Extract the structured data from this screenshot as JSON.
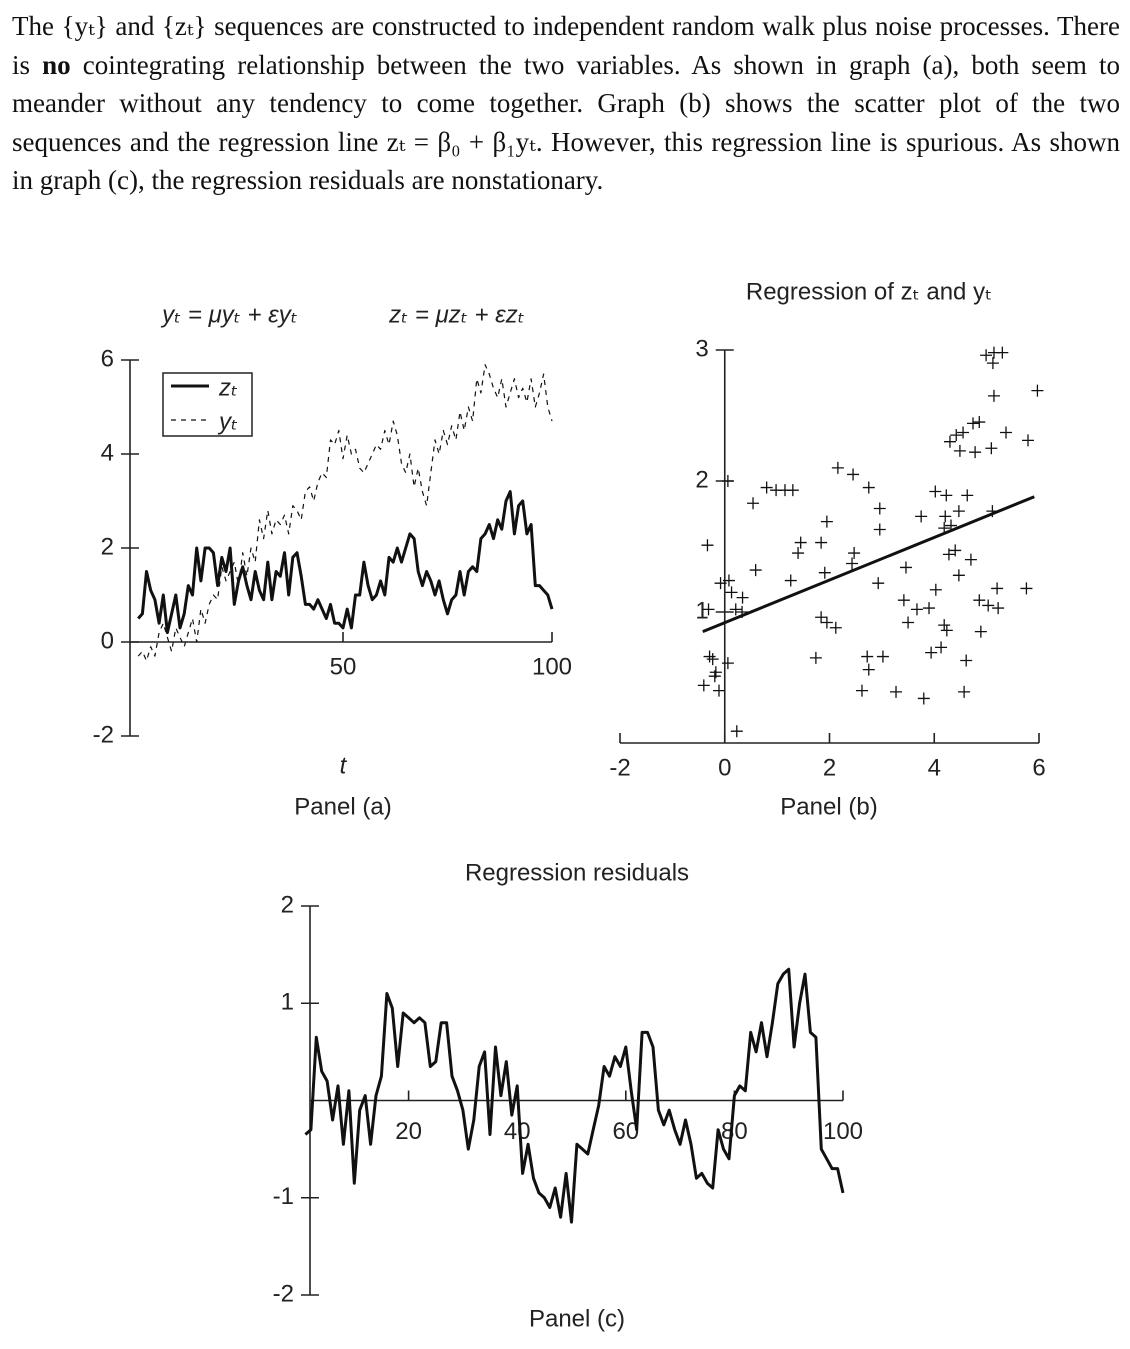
{
  "paragraph": [
    "The {yₜ} and {zₜ} sequences are constructed to independent random walk plus noise processes. There is ",
    "no",
    " cointegrating relationship between the two variables. As shown in graph (a), both seem to meander without any tendency to come together. Graph (b) shows the scatter plot of the two sequences and the regression line zₜ = β₀ + β₁yₜ. However, this regression line is spurious. As shown in graph (c), the regression residuals are nonstationary."
  ],
  "chart_data": [
    {
      "type": "line",
      "annotations": [
        "yₜ = μyₜ + εyₜ",
        "zₜ = μzₜ + εzₜ"
      ],
      "x_label": "t",
      "panel_label": "Panel (a)",
      "x": [
        1,
        2,
        3,
        4,
        5,
        6,
        7,
        8,
        9,
        10,
        11,
        12,
        13,
        14,
        15,
        16,
        17,
        18,
        19,
        20,
        21,
        22,
        23,
        24,
        25,
        26,
        27,
        28,
        29,
        30,
        31,
        32,
        33,
        34,
        35,
        36,
        37,
        38,
        39,
        40,
        41,
        42,
        43,
        44,
        45,
        46,
        47,
        48,
        49,
        50,
        51,
        52,
        53,
        54,
        55,
        56,
        57,
        58,
        59,
        60,
        61,
        62,
        63,
        64,
        65,
        66,
        67,
        68,
        69,
        70,
        71,
        72,
        73,
        74,
        75,
        76,
        77,
        78,
        79,
        80,
        81,
        82,
        83,
        84,
        85,
        86,
        87,
        88,
        89,
        90,
        91,
        92,
        93,
        94,
        95,
        96,
        97,
        98,
        99,
        100
      ],
      "series": [
        {
          "name": "zₜ",
          "color": "#111111",
          "style": "solid",
          "values": [
            0.5,
            0.6,
            1.5,
            1.1,
            0.9,
            0.4,
            1.0,
            0.2,
            0.6,
            1.0,
            0.3,
            0.6,
            1.2,
            1.0,
            2.0,
            1.3,
            2.0,
            2.0,
            1.9,
            1.2,
            1.8,
            1.5,
            2.0,
            0.8,
            1.3,
            1.6,
            1.2,
            0.9,
            1.5,
            1.1,
            0.9,
            1.7,
            0.9,
            1.5,
            1.4,
            1.9,
            1.0,
            1.8,
            1.9,
            1.4,
            0.8,
            0.8,
            0.7,
            0.9,
            0.7,
            0.5,
            0.8,
            0.4,
            0.4,
            0.3,
            0.7,
            0.3,
            1.0,
            1.0,
            1.7,
            1.2,
            0.9,
            1.0,
            1.3,
            1.0,
            1.8,
            1.7,
            2.0,
            1.7,
            2.0,
            2.3,
            2.2,
            1.5,
            1.2,
            1.5,
            1.3,
            1.0,
            1.3,
            0.9,
            0.6,
            0.9,
            1.0,
            1.5,
            1.0,
            1.5,
            1.6,
            1.5,
            2.2,
            2.3,
            2.5,
            2.2,
            2.6,
            2.4,
            3.0,
            3.2,
            2.3,
            2.9,
            3.0,
            2.3,
            2.5,
            1.2,
            1.2,
            1.1,
            1.0,
            0.7
          ]
        },
        {
          "name": "yₜ",
          "color": "#111111",
          "style": "dashed",
          "values": [
            -0.3,
            -0.2,
            -0.4,
            -0.1,
            -0.3,
            0.2,
            0.4,
            0.1,
            -0.2,
            0.3,
            0.1,
            -0.1,
            0.2,
            0.5,
            0.0,
            0.7,
            0.4,
            0.8,
            1.0,
            0.9,
            1.6,
            1.3,
            1.5,
            1.7,
            1.2,
            1.9,
            1.4,
            2.0,
            1.7,
            2.6,
            2.2,
            2.8,
            2.3,
            2.6,
            2.5,
            2.7,
            2.3,
            2.9,
            2.8,
            2.6,
            3.2,
            3.3,
            3.0,
            3.4,
            3.6,
            3.5,
            4.3,
            4.2,
            4.5,
            3.9,
            4.4,
            4.0,
            4.1,
            3.7,
            3.6,
            3.8,
            4.0,
            4.2,
            4.1,
            4.5,
            4.2,
            4.7,
            4.4,
            3.8,
            3.6,
            4.0,
            3.3,
            3.7,
            3.2,
            2.9,
            3.6,
            4.3,
            4.0,
            4.5,
            4.2,
            4.6,
            4.3,
            4.9,
            4.5,
            5.0,
            4.7,
            5.6,
            5.3,
            5.9,
            5.7,
            5.4,
            5.2,
            5.6,
            5.0,
            5.3,
            5.6,
            5.2,
            5.4,
            5.1,
            5.6,
            5.0,
            5.3,
            5.7,
            5.0,
            4.7
          ]
        }
      ],
      "xlim": [
        0,
        100
      ],
      "ylim": [
        -2,
        6
      ],
      "xticks": [
        50,
        100
      ],
      "yticks": [
        -2,
        0,
        2,
        4,
        6
      ],
      "legend": "upper left"
    },
    {
      "type": "scatter",
      "title": "Regression of zₜ and yₜ",
      "panel_label": "Panel (b)",
      "marker": "+",
      "color": "#111111",
      "x": [
        0.06,
        0.54,
        0.8,
        0.98,
        1.15,
        1.3,
        2.16,
        2.45,
        2.75,
        1.95,
        2.96,
        2.96,
        1.45,
        1.84,
        1.4,
        0.59,
        1.26,
        1.91,
        2.47,
        2.43,
        2.93,
        3.46,
        3.42,
        3.67,
        3.9,
        3.5,
        4.19,
        4.24,
        4.89,
        4.03,
        4.47,
        4.7,
        4.4,
        4.28,
        4.32,
        4.19,
        3.75,
        4.21,
        4.47,
        4.63,
        4.02,
        4.23,
        5.11,
        4.3,
        4.42,
        4.55,
        4.74,
        4.86,
        4.49,
        4.78,
        5.09,
        5.37,
        5.79,
        5.14,
        5.97,
        4.99,
        5.14,
        5.3,
        5.12,
        -0.33,
        -0.08,
        0.08,
        0.13,
        0.34,
        0.21,
        0.33,
        -0.31,
        -0.29,
        -0.23,
        0.06,
        -0.17,
        -0.4,
        -0.11,
        -0.19,
        0.23,
        1.74,
        1.84,
        1.95,
        2.12,
        2.72,
        3.02,
        2.75,
        2.62,
        3.27,
        3.8,
        4.57,
        4.61,
        3.94,
        4.13,
        5.2,
        5.76,
        5.03,
        5.22,
        4.86
      ],
      "values": [
        2.0,
        1.83,
        1.95,
        1.93,
        1.93,
        1.93,
        2.1,
        2.05,
        1.95,
        1.69,
        1.79,
        1.63,
        1.53,
        1.53,
        1.45,
        1.32,
        1.24,
        1.3,
        1.45,
        1.37,
        1.22,
        1.34,
        1.09,
        1.02,
        1.03,
        0.92,
        0.9,
        0.86,
        0.85,
        1.17,
        1.28,
        1.4,
        1.47,
        1.44,
        1.66,
        1.64,
        1.73,
        1.73,
        1.77,
        1.89,
        1.92,
        1.89,
        1.77,
        2.3,
        2.35,
        2.37,
        2.44,
        2.45,
        2.23,
        2.22,
        2.25,
        2.37,
        2.31,
        2.65,
        2.69,
        2.96,
        2.98,
        2.98,
        2.9,
        1.51,
        1.22,
        1.24,
        1.15,
        1.11,
        1.02,
        1.0,
        1.02,
        0.66,
        0.64,
        0.61,
        0.54,
        0.44,
        0.4,
        0.51,
        0.09,
        0.65,
        0.96,
        0.92,
        0.88,
        0.66,
        0.66,
        0.56,
        0.4,
        0.39,
        0.34,
        0.39,
        0.63,
        0.69,
        0.73,
        1.18,
        1.18,
        1.05,
        1.03,
        1.09
      ],
      "fit": {
        "x": [
          -0.42,
          5.91
        ],
        "y": [
          0.85,
          1.88
        ]
      },
      "xlim": [
        -2,
        6
      ],
      "ylim": [
        0,
        3
      ],
      "xticks": [
        -2,
        0,
        2,
        4,
        6
      ],
      "yticks": [
        1,
        2,
        3
      ]
    },
    {
      "type": "line",
      "title": "Regression residuals",
      "panel_label": "Panel (c)",
      "x": [
        1,
        2,
        3,
        4,
        5,
        6,
        7,
        8,
        9,
        10,
        11,
        12,
        13,
        14,
        15,
        16,
        17,
        18,
        19,
        20,
        21,
        22,
        23,
        24,
        25,
        26,
        27,
        28,
        29,
        30,
        31,
        32,
        33,
        34,
        35,
        36,
        37,
        38,
        39,
        40,
        41,
        42,
        43,
        44,
        45,
        46,
        47,
        48,
        49,
        50,
        51,
        52,
        53,
        54,
        55,
        56,
        57,
        58,
        59,
        60,
        61,
        62,
        63,
        64,
        65,
        66,
        67,
        68,
        69,
        70,
        71,
        72,
        73,
        74,
        75,
        76,
        77,
        78,
        79,
        80,
        81,
        82,
        83,
        84,
        85,
        86,
        87,
        88,
        89,
        90,
        91,
        92,
        93,
        94,
        95,
        96,
        97,
        98,
        99,
        100
      ],
      "series": [
        {
          "color": "#111111",
          "style": "solid",
          "values": [
            -0.35,
            -0.3,
            0.65,
            0.3,
            0.2,
            -0.2,
            0.15,
            -0.45,
            0.1,
            -0.85,
            -0.1,
            0.05,
            -0.45,
            0.05,
            0.25,
            1.1,
            0.95,
            0.35,
            0.9,
            0.85,
            0.8,
            0.85,
            0.8,
            0.35,
            0.4,
            0.8,
            0.8,
            0.25,
            0.1,
            -0.1,
            -0.5,
            -0.2,
            0.35,
            0.5,
            -0.35,
            0.55,
            0.05,
            0.4,
            -0.15,
            0.15,
            -0.75,
            -0.45,
            -0.8,
            -0.95,
            -1.0,
            -1.1,
            -0.9,
            -1.2,
            -0.75,
            -1.25,
            -0.45,
            -0.5,
            -0.55,
            -0.3,
            -0.05,
            0.35,
            0.25,
            0.45,
            0.35,
            0.55,
            0.1,
            -0.3,
            0.7,
            0.7,
            0.55,
            -0.1,
            -0.25,
            -0.1,
            -0.3,
            -0.45,
            -0.2,
            -0.45,
            -0.8,
            -0.75,
            -0.85,
            -0.9,
            -0.3,
            -0.5,
            -0.6,
            0.05,
            0.15,
            0.1,
            0.7,
            0.5,
            0.8,
            0.45,
            0.8,
            1.2,
            1.3,
            1.35,
            0.55,
            1.0,
            1.3,
            0.7,
            0.65,
            -0.5,
            -0.6,
            -0.7,
            -0.7,
            -0.95
          ]
        }
      ],
      "xlim": [
        0,
        100
      ],
      "ylim": [
        -2,
        2
      ],
      "xticks": [
        20,
        40,
        60,
        80,
        100
      ],
      "yticks": [
        -2,
        -1,
        1,
        2
      ]
    }
  ]
}
